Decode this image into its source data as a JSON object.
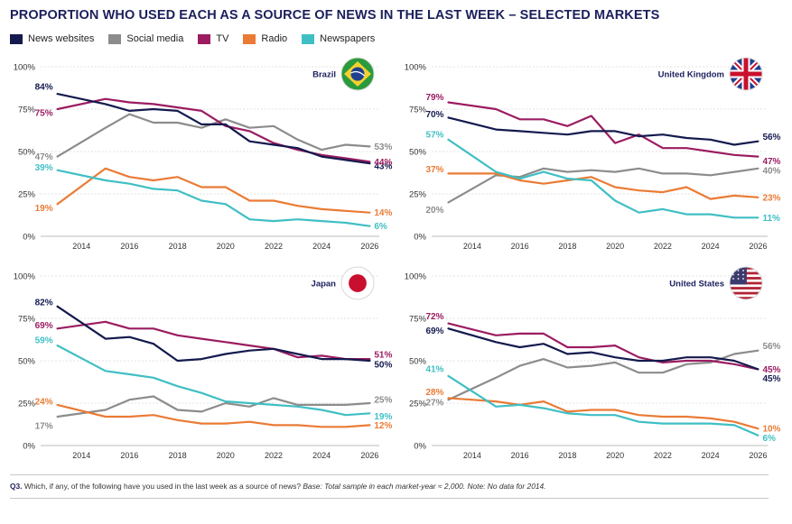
{
  "title": "PROPORTION WHO USED EACH AS A SOURCE OF NEWS IN THE LAST WEEK – SELECTED MARKETS",
  "legend": [
    {
      "name": "News websites",
      "color": "#141a4e"
    },
    {
      "name": "Social media",
      "color": "#8c8c8c"
    },
    {
      "name": "TV",
      "color": "#9b1c61"
    },
    {
      "name": "Radio",
      "color": "#ea7b36"
    },
    {
      "name": "Newspapers",
      "color": "#3fbfc4"
    }
  ],
  "footnote": {
    "label": "Q3.",
    "question": "Which, if any, of the following have you used in the last week as a source of news?",
    "note": "Base: Total sample in each market-year ≈ 2,000. Note: No data for 2014."
  },
  "chart_data": [
    {
      "type": "line",
      "title": "Brazil",
      "flag": "brazil-flag-icon",
      "x": [
        2013,
        2015,
        2016,
        2017,
        2018,
        2019,
        2020,
        2021,
        2022,
        2023,
        2024,
        2025,
        2026
      ],
      "xticks": [
        2014,
        2016,
        2018,
        2020,
        2022,
        2024,
        2026
      ],
      "yticks": [
        "0%",
        "25%",
        "50%",
        "75%",
        "100%"
      ],
      "ylim": [
        0,
        100
      ],
      "series": [
        {
          "name": "News websites",
          "values": [
            84,
            78,
            74,
            75,
            74,
            66,
            66,
            56,
            54,
            52,
            47,
            45,
            43
          ],
          "start_label": "84%",
          "end_label": "43%"
        },
        {
          "name": "Social media",
          "values": [
            47,
            64,
            72,
            67,
            67,
            64,
            69,
            64,
            65,
            57,
            51,
            54,
            53
          ],
          "start_label": "47%",
          "end_label": "53%"
        },
        {
          "name": "TV",
          "values": [
            75,
            81,
            79,
            78,
            76,
            74,
            65,
            62,
            55,
            51,
            48,
            46,
            44
          ],
          "start_label": "75%",
          "end_label": "44%"
        },
        {
          "name": "Radio",
          "values": [
            19,
            40,
            35,
            33,
            35,
            29,
            29,
            21,
            21,
            18,
            16,
            15,
            14
          ],
          "start_label": "19%",
          "end_label": "14%"
        },
        {
          "name": "Newspapers",
          "values": [
            39,
            33,
            31,
            28,
            27,
            21,
            19,
            10,
            9,
            10,
            9,
            8,
            6
          ],
          "start_label": "39%",
          "end_label": "6%"
        }
      ]
    },
    {
      "type": "line",
      "title": "United Kingdom",
      "flag": "uk-flag-icon",
      "x": [
        2013,
        2015,
        2016,
        2017,
        2018,
        2019,
        2020,
        2021,
        2022,
        2023,
        2024,
        2025,
        2026
      ],
      "xticks": [
        2014,
        2016,
        2018,
        2020,
        2022,
        2024,
        2026
      ],
      "yticks": [
        "0%",
        "25%",
        "50%",
        "75%",
        "100%"
      ],
      "ylim": [
        0,
        100
      ],
      "series": [
        {
          "name": "News websites",
          "values": [
            70,
            63,
            62,
            61,
            60,
            62,
            62,
            59,
            60,
            58,
            57,
            54,
            56
          ],
          "start_label": "70%",
          "end_label": "56%"
        },
        {
          "name": "Social media",
          "values": [
            20,
            36,
            35,
            40,
            38,
            39,
            38,
            40,
            37,
            37,
            36,
            38,
            40
          ],
          "start_label": "20%",
          "end_label": "40%"
        },
        {
          "name": "TV",
          "values": [
            79,
            75,
            69,
            69,
            65,
            71,
            55,
            60,
            52,
            52,
            50,
            48,
            47
          ],
          "start_label": "79%",
          "end_label": "47%"
        },
        {
          "name": "Radio",
          "values": [
            37,
            37,
            33,
            31,
            33,
            35,
            29,
            27,
            26,
            29,
            22,
            24,
            23
          ],
          "start_label": "37%",
          "end_label": "23%"
        },
        {
          "name": "Newspapers",
          "values": [
            57,
            38,
            34,
            38,
            34,
            33,
            21,
            14,
            16,
            13,
            13,
            11,
            11
          ],
          "start_label": "57%",
          "end_label": "11%"
        }
      ]
    },
    {
      "type": "line",
      "title": "Japan",
      "flag": "japan-flag-icon",
      "x": [
        2013,
        2015,
        2016,
        2017,
        2018,
        2019,
        2020,
        2021,
        2022,
        2023,
        2024,
        2025,
        2026
      ],
      "xticks": [
        2014,
        2016,
        2018,
        2020,
        2022,
        2024,
        2026
      ],
      "yticks": [
        "0%",
        "25%",
        "50%",
        "75%",
        "100%"
      ],
      "ylim": [
        0,
        100
      ],
      "series": [
        {
          "name": "News websites",
          "values": [
            82,
            63,
            64,
            60,
            50,
            51,
            54,
            56,
            57,
            54,
            51,
            51,
            50
          ],
          "start_label": "82%",
          "end_label": "50%"
        },
        {
          "name": "Social media",
          "values": [
            17,
            21,
            27,
            29,
            21,
            20,
            25,
            23,
            28,
            24,
            24,
            24,
            25
          ],
          "start_label": "17%",
          "end_label": "25%"
        },
        {
          "name": "TV",
          "values": [
            69,
            73,
            69,
            69,
            65,
            63,
            61,
            59,
            57,
            52,
            53,
            51,
            51
          ],
          "start_label": "69%",
          "end_label": "51%"
        },
        {
          "name": "Radio",
          "values": [
            24,
            17,
            17,
            18,
            15,
            13,
            13,
            14,
            12,
            12,
            11,
            11,
            12
          ],
          "start_label": "24%",
          "end_label": "12%"
        },
        {
          "name": "Newspapers",
          "values": [
            59,
            44,
            42,
            40,
            35,
            31,
            26,
            25,
            24,
            23,
            21,
            18,
            19
          ],
          "start_label": "59%",
          "end_label": "19%"
        }
      ]
    },
    {
      "type": "line",
      "title": "United States",
      "flag": "us-flag-icon",
      "x": [
        2013,
        2015,
        2016,
        2017,
        2018,
        2019,
        2020,
        2021,
        2022,
        2023,
        2024,
        2025,
        2026
      ],
      "xticks": [
        2014,
        2016,
        2018,
        2020,
        2022,
        2024,
        2026
      ],
      "yticks": [
        "0%",
        "25%",
        "50%",
        "75%",
        "100%"
      ],
      "ylim": [
        0,
        100
      ],
      "series": [
        {
          "name": "News websites",
          "values": [
            69,
            61,
            58,
            60,
            54,
            55,
            52,
            50,
            50,
            52,
            52,
            50,
            45
          ],
          "start_label": "69%",
          "end_label": "45%"
        },
        {
          "name": "Social media",
          "values": [
            27,
            40,
            47,
            51,
            46,
            47,
            49,
            43,
            43,
            48,
            49,
            54,
            56
          ],
          "start_label": "27%",
          "end_label": "56%"
        },
        {
          "name": "TV",
          "values": [
            72,
            65,
            66,
            66,
            58,
            58,
            59,
            52,
            49,
            50,
            50,
            48,
            45
          ],
          "start_label": "72%",
          "end_label": "45%"
        },
        {
          "name": "Radio",
          "values": [
            28,
            26,
            24,
            26,
            20,
            21,
            21,
            18,
            17,
            17,
            16,
            14,
            10
          ],
          "start_label": "28%",
          "end_label": "10%"
        },
        {
          "name": "Newspapers",
          "values": [
            41,
            23,
            24,
            22,
            19,
            18,
            18,
            14,
            13,
            13,
            13,
            12,
            6
          ],
          "start_label": "41%",
          "end_label": "6%"
        }
      ]
    }
  ]
}
